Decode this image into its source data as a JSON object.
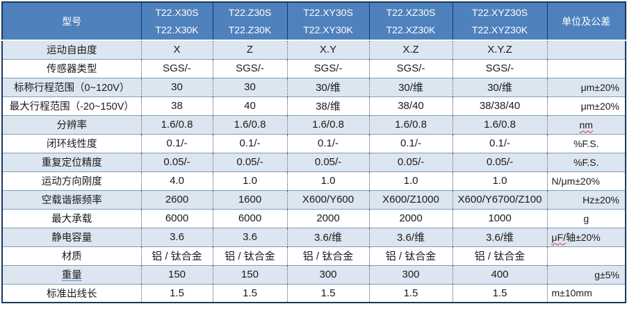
{
  "colors": {
    "header_bg": "#4f81bd",
    "row_alt_bg": "#dce6f1",
    "row_bg": "#ffffff",
    "horizontal_border": "#7f9db9",
    "outer_border": "#17375e",
    "header_text": "#ffffff",
    "body_text": "#1a1a1a",
    "spellcheck_squiggle": "#e03131"
  },
  "table": {
    "header": {
      "model_label": "型号",
      "unit_label": "单位及公差",
      "columns": [
        {
          "line1": "T22.X30S",
          "line2": "T22.X30K"
        },
        {
          "line1": "T22.Z30S",
          "line2": "T22.Z30K"
        },
        {
          "line1": "T22.XY30S",
          "line2": "T22.XY30K"
        },
        {
          "line1": "T22.XZ30S",
          "line2": "T22.XZ30K"
        },
        {
          "line1": "T22.XYZ30S",
          "line2": "T22.XYZ30K"
        }
      ]
    },
    "rows": [
      {
        "label": "运动自由度",
        "values": [
          "X",
          "Z",
          "X.Y",
          "X.Z",
          "X.Y.Z"
        ],
        "unit": [],
        "unit_align": "center",
        "underline": false
      },
      {
        "label": "传感器类型",
        "values": [
          "SGS/-",
          "SGS/-",
          "SGS/-",
          "SGS/-",
          "SGS/-"
        ],
        "unit": [],
        "unit_align": "center",
        "underline": false
      },
      {
        "label": "标称行程范围（0~120V）",
        "values": [
          "30",
          "30",
          "30/维",
          "30/维",
          "30/维"
        ],
        "unit": [
          {
            "text": "μm±20%",
            "squiggle": false
          }
        ],
        "unit_align": "right",
        "underline": false
      },
      {
        "label": "最大行程范围（-20~150V）",
        "values": [
          "38",
          "40",
          "38/维",
          "38/40",
          "38/38/40"
        ],
        "unit": [
          {
            "text": "μm±20%",
            "squiggle": false
          }
        ],
        "unit_align": "right",
        "underline": false
      },
      {
        "label": "分辨率",
        "values": [
          "1.6/0.8",
          "1.6/0.8",
          "1.6/0.8",
          "1.6/0.8",
          "1.6/0.8"
        ],
        "unit": [
          {
            "text": "nm",
            "squiggle": true
          }
        ],
        "unit_align": "center",
        "underline": false
      },
      {
        "label": "闭环线性度",
        "values": [
          "0.1/-",
          "0.1/-",
          "0.1/-",
          "0.1/-",
          "0.1/-"
        ],
        "unit": [
          {
            "text": "%F.S.",
            "squiggle": false
          }
        ],
        "unit_align": "center",
        "underline": false
      },
      {
        "label": "重复定位精度",
        "values": [
          "0.05/-",
          "0.05/-",
          "0.05/-",
          "0.05/-",
          "0.05/-"
        ],
        "unit": [
          {
            "text": "%F.S.",
            "squiggle": false
          }
        ],
        "unit_align": "center",
        "underline": false
      },
      {
        "label": "运动方向刚度",
        "values": [
          "4.0",
          "1.0",
          "1.0",
          "1.0",
          "1.0"
        ],
        "unit": [
          {
            "text": "N/μm±20%",
            "squiggle": false
          }
        ],
        "unit_align": "left",
        "underline": false
      },
      {
        "label": "空载谐振频率",
        "values": [
          "2600",
          "1600",
          "X600/Y600",
          "X600/Z1000",
          "X600/Y6700/Z100"
        ],
        "unit": [
          {
            "text": "Hz±20%",
            "squiggle": false
          }
        ],
        "unit_align": "right",
        "underline": false
      },
      {
        "label": "最大承载",
        "values": [
          "6000",
          "6000",
          "2000",
          "2000",
          "1000"
        ],
        "unit": [
          {
            "text": "g",
            "squiggle": false
          }
        ],
        "unit_align": "center",
        "underline": false
      },
      {
        "label": "静电容量",
        "values": [
          "3.6",
          "3.6",
          "3.6/维",
          "3.6/维",
          "3.6/维"
        ],
        "unit": [
          {
            "text": "μF/",
            "squiggle": true
          },
          {
            "text": "轴±20%",
            "squiggle": false
          }
        ],
        "unit_align": "left",
        "underline": false
      },
      {
        "label": "材质",
        "values": [
          "铝 / 钛合金",
          "铝 / 钛合金",
          "铝 / 钛合金",
          "铝 / 钛合金",
          "铝 / 钛合金"
        ],
        "unit": [],
        "unit_align": "center",
        "underline": false
      },
      {
        "label": "重量",
        "values": [
          "150",
          "150",
          "300",
          "300",
          "400"
        ],
        "unit": [
          {
            "text": "g±5%",
            "squiggle": false
          }
        ],
        "unit_align": "right",
        "underline": true
      },
      {
        "label": "标准出线长",
        "values": [
          "1.5",
          "1.5",
          "1.5",
          "1.5",
          "1.5"
        ],
        "unit": [
          {
            "text": "m±10mm",
            "squiggle": false
          }
        ],
        "unit_align": "left",
        "underline": false
      }
    ]
  }
}
